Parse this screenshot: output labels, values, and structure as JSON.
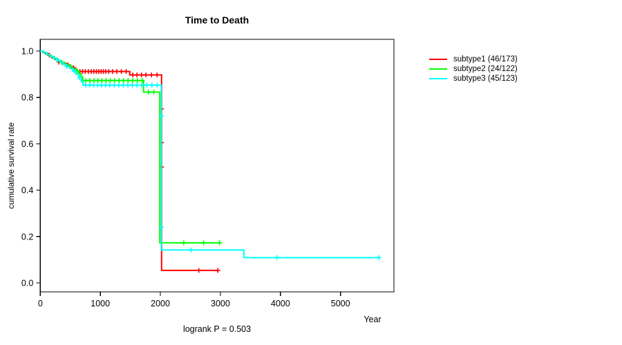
{
  "chart_data": {
    "type": "line",
    "subtype": "kaplan-meier-step-curves",
    "title": "Time to Death",
    "xlabel": "Year",
    "ylabel": "cumulative survival rate",
    "footnote": "logrank P = 0.503",
    "xlim": [
      0,
      5890
    ],
    "ylim": [
      0,
      1.0
    ],
    "xticks": [
      0,
      1000,
      2000,
      3000,
      4000,
      5000
    ],
    "yticks": [
      0.0,
      0.2,
      0.4,
      0.6,
      0.8,
      1.0
    ],
    "ytick_labels": [
      "0.0",
      "0.2",
      "0.4",
      "0.6",
      "0.8",
      "1.0"
    ],
    "grid": false,
    "legend_position": "right-outside",
    "axis_color": "#000000",
    "series": [
      {
        "name": "subtype1",
        "legend_label": "subtype1 (46/173)",
        "color": "#ff0000",
        "points": [
          [
            0,
            1.0
          ],
          [
            45,
            0.994
          ],
          [
            90,
            0.988
          ],
          [
            130,
            0.982
          ],
          [
            165,
            0.976
          ],
          [
            200,
            0.97
          ],
          [
            240,
            0.964
          ],
          [
            285,
            0.958
          ],
          [
            330,
            0.952
          ],
          [
            385,
            0.946
          ],
          [
            440,
            0.94
          ],
          [
            495,
            0.934
          ],
          [
            550,
            0.927
          ],
          [
            590,
            0.919
          ],
          [
            620,
            0.912
          ],
          [
            1490,
            0.897
          ],
          [
            2020,
            0.054
          ],
          [
            2990,
            0.054
          ]
        ],
        "censors": [
          [
            150,
            0.982
          ],
          [
            310,
            0.952
          ],
          [
            460,
            0.94
          ],
          [
            555,
            0.927
          ],
          [
            660,
            0.912
          ],
          [
            703,
            0.912
          ],
          [
            748,
            0.912
          ],
          [
            800,
            0.912
          ],
          [
            848,
            0.912
          ],
          [
            893,
            0.912
          ],
          [
            935,
            0.912
          ],
          [
            975,
            0.912
          ],
          [
            1013,
            0.912
          ],
          [
            1050,
            0.912
          ],
          [
            1090,
            0.912
          ],
          [
            1140,
            0.912
          ],
          [
            1205,
            0.912
          ],
          [
            1275,
            0.912
          ],
          [
            1350,
            0.912
          ],
          [
            1430,
            0.912
          ],
          [
            1540,
            0.897
          ],
          [
            1610,
            0.897
          ],
          [
            1685,
            0.897
          ],
          [
            1760,
            0.897
          ],
          [
            1850,
            0.897
          ],
          [
            1945,
            0.897
          ],
          [
            2020,
            0.75
          ],
          [
            2020,
            0.605
          ],
          [
            2020,
            0.5
          ],
          [
            2640,
            0.054
          ],
          [
            2955,
            0.054
          ]
        ]
      },
      {
        "name": "subtype2",
        "legend_label": "subtype2 (24/122)",
        "color": "#00ff00",
        "points": [
          [
            0,
            1.0
          ],
          [
            55,
            0.992
          ],
          [
            115,
            0.984
          ],
          [
            175,
            0.975
          ],
          [
            235,
            0.967
          ],
          [
            295,
            0.958
          ],
          [
            355,
            0.95
          ],
          [
            415,
            0.941
          ],
          [
            475,
            0.932
          ],
          [
            535,
            0.923
          ],
          [
            595,
            0.913
          ],
          [
            645,
            0.901
          ],
          [
            680,
            0.888
          ],
          [
            705,
            0.873
          ],
          [
            1720,
            0.823
          ],
          [
            1990,
            0.173
          ],
          [
            3010,
            0.173
          ]
        ],
        "censors": [
          [
            360,
            0.95
          ],
          [
            505,
            0.932
          ],
          [
            620,
            0.913
          ],
          [
            760,
            0.873
          ],
          [
            828,
            0.873
          ],
          [
            895,
            0.873
          ],
          [
            960,
            0.873
          ],
          [
            1025,
            0.873
          ],
          [
            1095,
            0.873
          ],
          [
            1165,
            0.873
          ],
          [
            1240,
            0.873
          ],
          [
            1313,
            0.873
          ],
          [
            1388,
            0.873
          ],
          [
            1462,
            0.873
          ],
          [
            1540,
            0.873
          ],
          [
            1620,
            0.873
          ],
          [
            1700,
            0.873
          ],
          [
            1800,
            0.823
          ],
          [
            1890,
            0.823
          ],
          [
            2390,
            0.173
          ],
          [
            2720,
            0.173
          ],
          [
            2985,
            0.173
          ]
        ]
      },
      {
        "name": "subtype3",
        "legend_label": "subtype3 (45/123)",
        "color": "#00ffff",
        "points": [
          [
            0,
            1.0
          ],
          [
            50,
            0.993
          ],
          [
            105,
            0.985
          ],
          [
            160,
            0.977
          ],
          [
            215,
            0.969
          ],
          [
            270,
            0.961
          ],
          [
            325,
            0.952
          ],
          [
            380,
            0.943
          ],
          [
            435,
            0.934
          ],
          [
            490,
            0.924
          ],
          [
            545,
            0.913
          ],
          [
            595,
            0.9
          ],
          [
            640,
            0.885
          ],
          [
            680,
            0.868
          ],
          [
            710,
            0.853
          ],
          [
            2015,
            0.142
          ],
          [
            3390,
            0.109
          ],
          [
            5650,
            0.109
          ]
        ],
        "censors": [
          [
            285,
            0.961
          ],
          [
            440,
            0.934
          ],
          [
            565,
            0.913
          ],
          [
            655,
            0.885
          ],
          [
            755,
            0.853
          ],
          [
            823,
            0.853
          ],
          [
            890,
            0.853
          ],
          [
            955,
            0.853
          ],
          [
            1020,
            0.853
          ],
          [
            1088,
            0.853
          ],
          [
            1158,
            0.853
          ],
          [
            1232,
            0.853
          ],
          [
            1308,
            0.853
          ],
          [
            1383,
            0.853
          ],
          [
            1458,
            0.853
          ],
          [
            1533,
            0.853
          ],
          [
            1610,
            0.853
          ],
          [
            1690,
            0.853
          ],
          [
            1772,
            0.853
          ],
          [
            1858,
            0.853
          ],
          [
            1945,
            0.853
          ],
          [
            2015,
            0.72
          ],
          [
            2015,
            0.24
          ],
          [
            2510,
            0.142
          ],
          [
            3940,
            0.109
          ],
          [
            5640,
            0.109
          ]
        ]
      }
    ]
  }
}
